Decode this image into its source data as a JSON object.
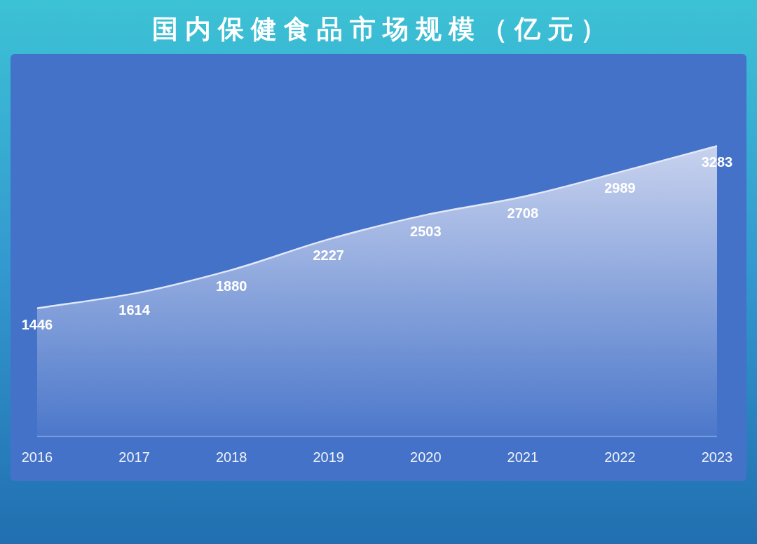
{
  "chart_data": {
    "type": "area",
    "title": "国内保健食品市场规模（亿元）",
    "categories": [
      "2016",
      "2017",
      "2018",
      "2019",
      "2020",
      "2021",
      "2022",
      "2023"
    ],
    "values": [
      1446,
      1614,
      1880,
      2227,
      2503,
      2708,
      2989,
      3283
    ],
    "color": "#c8d2ee",
    "data_labels": true
  }
}
